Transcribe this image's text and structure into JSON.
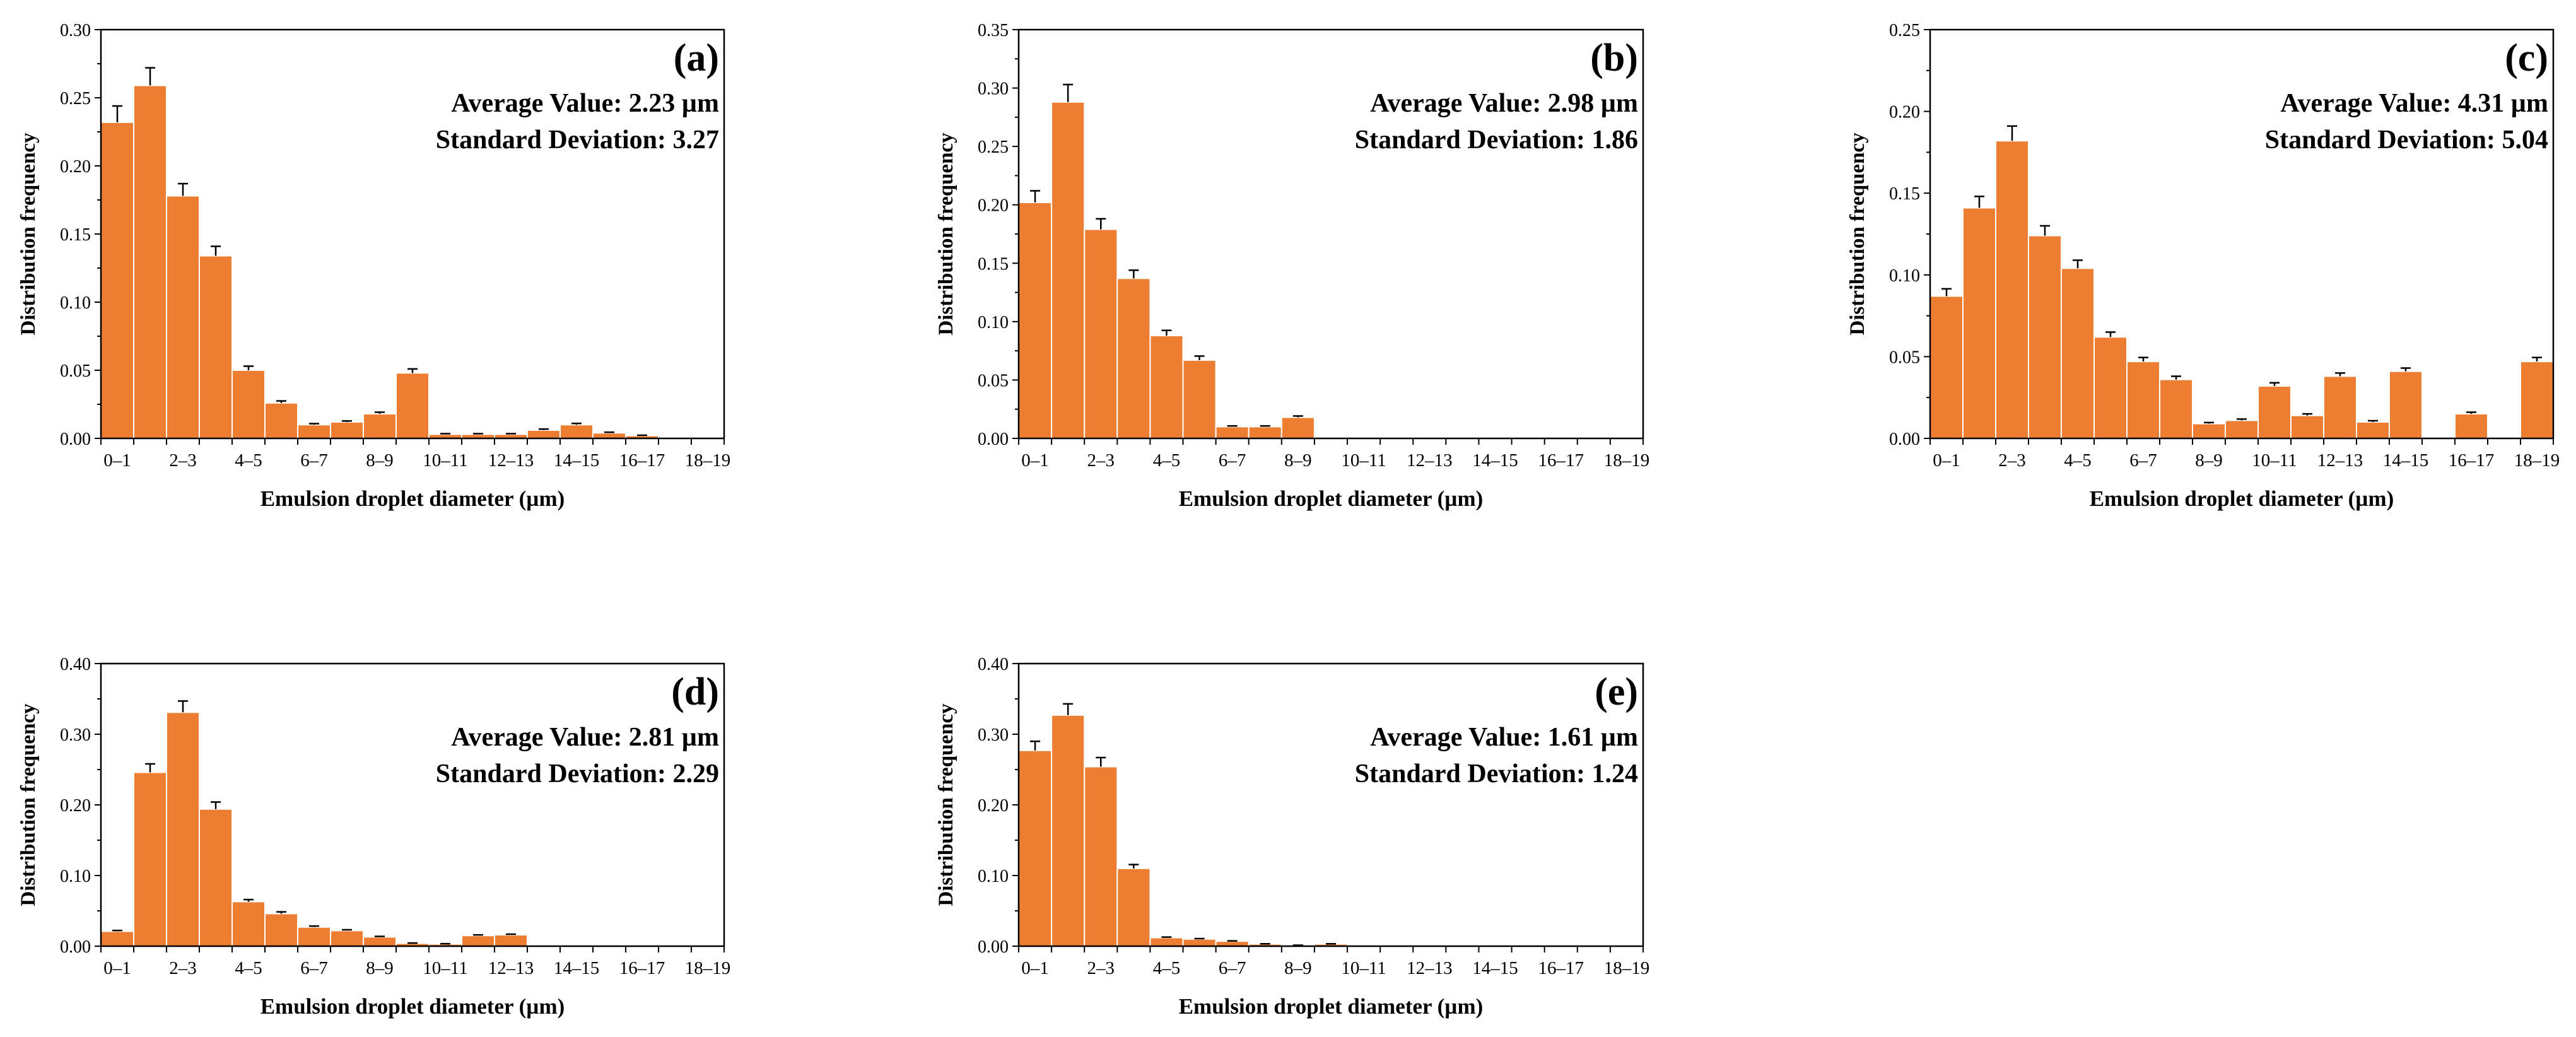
{
  "figure": {
    "bar_color": "#ED7D31",
    "error_bar_color": "#000000"
  },
  "chart_data": [
    {
      "type": "bar",
      "panel_label": "(a)",
      "stats": {
        "average": "Average Value: 2.23 µm",
        "std": "Standard Deviation: 3.27"
      },
      "xlabel": "Emulsion droplet diameter (µm)",
      "ylabel": "Distribution frequency",
      "ylim": [
        0,
        0.3
      ],
      "yticks": [
        "0.00",
        "0.05",
        "0.10",
        "0.15",
        "0.20",
        "0.25",
        "0.30"
      ],
      "categories": [
        "0–1",
        "1–2",
        "2–3",
        "3–4",
        "4–5",
        "5–6",
        "6–7",
        "7–8",
        "8–9",
        "9–10",
        "10–11",
        "11–12",
        "12–13",
        "13–14",
        "14–15",
        "15–16",
        "16–17",
        "17–18",
        "18–19"
      ],
      "tick_labels": [
        "0–1",
        "",
        "2–3",
        "",
        "4–5",
        "",
        "6–7",
        "",
        "8–9",
        "",
        "10–11",
        "",
        "12–13",
        "",
        "14–15",
        "",
        "16–17",
        "",
        "18–19"
      ],
      "values": [
        0.232,
        0.259,
        0.178,
        0.134,
        0.05,
        0.026,
        0.01,
        0.012,
        0.018,
        0.048,
        0.003,
        0.003,
        0.003,
        0.006,
        0.01,
        0.004,
        0.002,
        0,
        0
      ],
      "errors": [
        0.012,
        0.013,
        0.009,
        0.007,
        0.003,
        0.0015,
        0.0008,
        0.0008,
        0.0012,
        0.003,
        0.0005,
        0.0005,
        0.0005,
        0.0008,
        0.001,
        0.0005,
        0.0003,
        0,
        0
      ]
    },
    {
      "type": "bar",
      "panel_label": "(b)",
      "stats": {
        "average": "Average Value: 2.98 µm",
        "std": "Standard Deviation: 1.86"
      },
      "xlabel": "Emulsion droplet diameter (µm)",
      "ylabel": "Distribution frequency",
      "ylim": [
        0,
        0.35
      ],
      "yticks": [
        "0.00",
        "0.05",
        "0.10",
        "0.15",
        "0.20",
        "0.25",
        "0.30",
        "0.35"
      ],
      "categories": [
        "0–1",
        "1–2",
        "2–3",
        "3–4",
        "4–5",
        "5–6",
        "6–7",
        "7–8",
        "8–9",
        "9–10",
        "10–11",
        "11–12",
        "12–13",
        "13–14",
        "14–15",
        "15–16",
        "16–17",
        "17–18",
        "18–19"
      ],
      "tick_labels": [
        "0–1",
        "",
        "2–3",
        "",
        "4–5",
        "",
        "6–7",
        "",
        "8–9",
        "",
        "10–11",
        "",
        "12–13",
        "",
        "14–15",
        "",
        "16–17",
        "",
        "18–19"
      ],
      "values": [
        0.202,
        0.288,
        0.179,
        0.137,
        0.088,
        0.067,
        0.01,
        0.01,
        0.018,
        0,
        0,
        0,
        0,
        0,
        0,
        0,
        0,
        0,
        0
      ],
      "errors": [
        0.01,
        0.015,
        0.009,
        0.007,
        0.0045,
        0.0035,
        0.0007,
        0.0007,
        0.0012,
        0,
        0,
        0,
        0,
        0,
        0,
        0,
        0,
        0,
        0
      ]
    },
    {
      "type": "bar",
      "panel_label": "(c)",
      "stats": {
        "average": "Average Value: 4.31 µm",
        "std": "Standard Deviation: 5.04"
      },
      "xlabel": "Emulsion droplet diameter (µm)",
      "ylabel": "Distribution frequency",
      "ylim": [
        0,
        0.25
      ],
      "yticks": [
        "0.00",
        "0.05",
        "0.10",
        "0.15",
        "0.20",
        "0.25"
      ],
      "categories": [
        "0–1",
        "1–2",
        "2–3",
        "3–4",
        "4–5",
        "5–6",
        "6–7",
        "7–8",
        "8–9",
        "9–10",
        "10–11",
        "11–12",
        "12–13",
        "13–14",
        "14–15",
        "15–16",
        "16–17",
        "17–18",
        "18–19"
      ],
      "tick_labels": [
        "0–1",
        "",
        "2–3",
        "",
        "4–5",
        "",
        "6–7",
        "",
        "8–9",
        "",
        "10–11",
        "",
        "12–13",
        "",
        "14–15",
        "",
        "16–17",
        "",
        "18–19"
      ],
      "values": [
        0.087,
        0.141,
        0.182,
        0.124,
        0.104,
        0.062,
        0.047,
        0.036,
        0.009,
        0.011,
        0.032,
        0.014,
        0.038,
        0.01,
        0.041,
        0,
        0.015,
        0,
        0.047
      ],
      "errors": [
        0.0045,
        0.007,
        0.009,
        0.006,
        0.005,
        0.003,
        0.0025,
        0.002,
        0.0007,
        0.0008,
        0.002,
        0.001,
        0.002,
        0.0008,
        0.002,
        0,
        0.001,
        0,
        0.0025
      ]
    },
    {
      "type": "bar",
      "panel_label": "(d)",
      "stats": {
        "average": "Average Value: 2.81 µm",
        "std": "Standard Deviation: 2.29"
      },
      "xlabel": "Emulsion droplet diameter (µm)",
      "ylabel": "Distribution frequency",
      "ylim": [
        0,
        0.4
      ],
      "yticks": [
        "0.00",
        "0.10",
        "0.20",
        "0.30",
        "0.40"
      ],
      "categories": [
        "0–1",
        "1–2",
        "2–3",
        "3–4",
        "4–5",
        "5–6",
        "6–7",
        "7–8",
        "8–9",
        "9–10",
        "10–11",
        "11–12",
        "12–13",
        "13–14",
        "14–15",
        "15–16",
        "16–17",
        "17–18",
        "18–19"
      ],
      "tick_labels": [
        "0–1",
        "",
        "2–3",
        "",
        "4–5",
        "",
        "6–7",
        "",
        "8–9",
        "",
        "10–11",
        "",
        "12–13",
        "",
        "14–15",
        "",
        "16–17",
        "",
        "18–19"
      ],
      "values": [
        0.021,
        0.246,
        0.331,
        0.194,
        0.063,
        0.046,
        0.027,
        0.022,
        0.013,
        0.004,
        0.003,
        0.015,
        0.016,
        0,
        0,
        0,
        0,
        0,
        0
      ],
      "errors": [
        0.0012,
        0.012,
        0.016,
        0.01,
        0.003,
        0.0025,
        0.0015,
        0.0012,
        0.0008,
        0.0005,
        0.0005,
        0.001,
        0.001,
        0,
        0,
        0,
        0,
        0,
        0
      ]
    },
    {
      "type": "bar",
      "panel_label": "(e)",
      "stats": {
        "average": "Average Value: 1.61 µm",
        "std": "Standard Deviation: 1.24"
      },
      "xlabel": "Emulsion droplet diameter (µm)",
      "ylabel": "Distribution frequency",
      "ylim": [
        0,
        0.4
      ],
      "yticks": [
        "0.00",
        "0.10",
        "0.20",
        "0.30",
        "0.40"
      ],
      "categories": [
        "0–1",
        "1–2",
        "2–3",
        "3–4",
        "4–5",
        "5–6",
        "6–7",
        "7–8",
        "8–9",
        "9–10",
        "10–11",
        "11–12",
        "12–13",
        "13–14",
        "14–15",
        "15–16",
        "16–17",
        "17–18",
        "18–19"
      ],
      "tick_labels": [
        "0–1",
        "",
        "2–3",
        "",
        "4–5",
        "",
        "6–7",
        "",
        "8–9",
        "",
        "10–11",
        "",
        "12–13",
        "",
        "14–15",
        "",
        "16–17",
        "",
        "18–19"
      ],
      "values": [
        0.277,
        0.327,
        0.254,
        0.11,
        0.012,
        0.01,
        0.007,
        0.003,
        0.001,
        0.003,
        0,
        0,
        0,
        0,
        0,
        0,
        0,
        0,
        0
      ],
      "errors": [
        0.013,
        0.016,
        0.013,
        0.0055,
        0.0008,
        0.0007,
        0.0005,
        0.0004,
        0.0003,
        0.0004,
        0,
        0,
        0,
        0,
        0,
        0,
        0,
        0,
        0
      ]
    }
  ]
}
